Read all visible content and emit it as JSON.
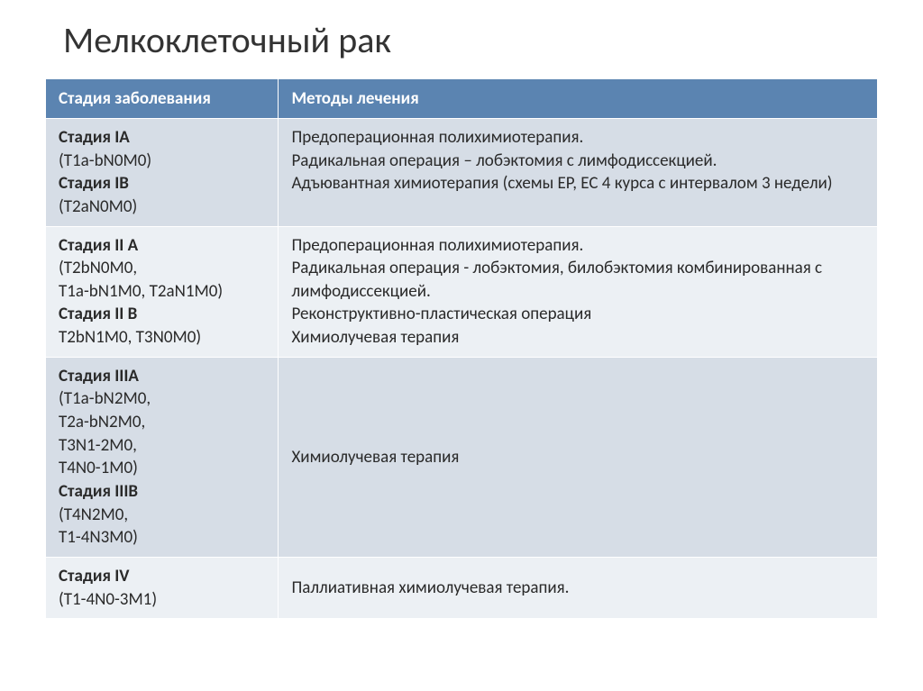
{
  "title": "Мелкоклеточный рак",
  "table": {
    "header_bg": "#5b84b1",
    "header_color": "#ffffff",
    "row_odd_bg": "#d6dde6",
    "row_even_bg": "#ecf0f4",
    "text_color": "#2a2a2a",
    "font_size": 19,
    "columns": [
      {
        "label": "Стадия заболевания",
        "width_pct": 28
      },
      {
        "label": "Методы лечения",
        "width_pct": 72
      }
    ],
    "rows": [
      {
        "stage": {
          "s1_title": "Стадия IA",
          "s1_code": "(T1a-bN0M0)",
          "s2_title": "Стадия IB",
          "s2_code": "(T2aN0M0)"
        },
        "method": {
          "l1": "Предоперационная полихимиотерапия.",
          "l2": "Радикальная операция – лобэктомия с лимфодиссекцией.",
          "l3": "Адъювантная химиотерапия (схемы EP, EC 4 курса с интервалом 3 недели)"
        }
      },
      {
        "stage": {
          "s1_title": "Стадия II A",
          "s1_code": "(T2bN0M0,",
          "s1_code2": "T1a-bN1M0, T2aN1M0)",
          "s2_title": "Стадия II B",
          "s2_code": "T2bN1M0, T3N0M0)"
        },
        "method": {
          "l1": "Предоперационная полихимиотерапия.",
          "l2": "Радикальная операция - лобэктомия, билобэктомия комбинированная с лимфодиссекцией.",
          "l3": "Реконструктивно-пластическая операция",
          "l4": "Химиолучевая терапия"
        }
      },
      {
        "stage": {
          "s1_title": "Стадия IIIA",
          "s1_code": "(T1a-bN2M0,",
          "s1_code2": "T2a-bN2M0,",
          "s1_code3": "T3N1-2M0,",
          "s1_code4": "T4N0-1M0)",
          "s2_title": "Стадия IIIB",
          "s2_code": "(T4N2M0,",
          "s2_code2": "T1-4N3M0)"
        },
        "method": {
          "l1": "Химиолучевая терапия"
        }
      },
      {
        "stage": {
          "s1_title": "Стадия IV",
          "s1_code": "(T1-4N0-3M1)"
        },
        "method": {
          "l1": "Паллиативная химиолучевая терапия."
        }
      }
    ]
  }
}
